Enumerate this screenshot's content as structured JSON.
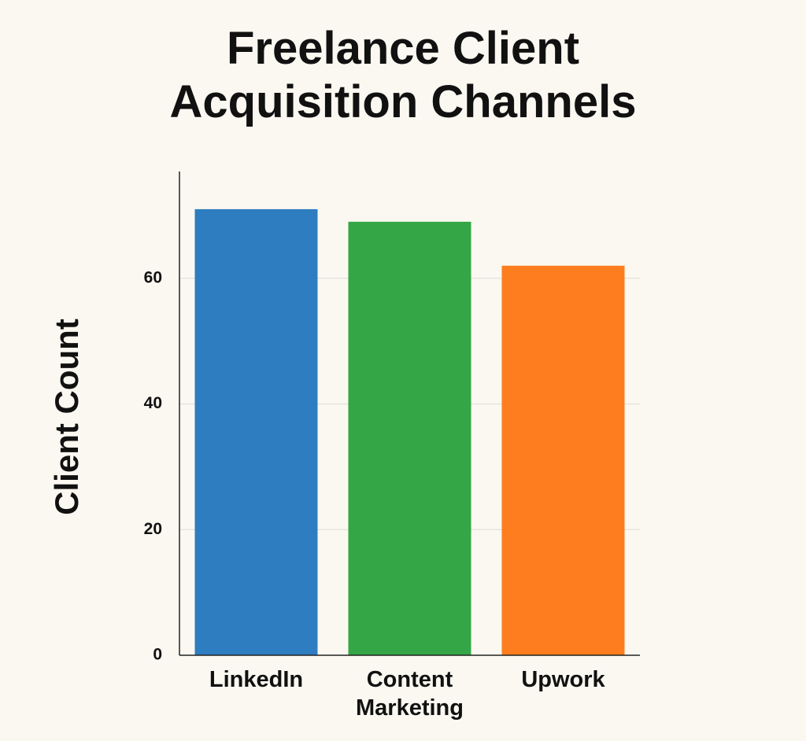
{
  "chart_data": {
    "type": "bar",
    "title": "Freelance Client Acquisition Channels",
    "y_label": "Client Count",
    "categories": [
      "LinkedIn",
      "Content Marketing",
      "Upwork"
    ],
    "values": [
      71,
      69,
      62
    ],
    "colors": [
      "#2e7dc0",
      "#35a645",
      "#fd7d1f"
    ],
    "ylim": [
      0,
      77
    ],
    "yticks": [
      0,
      20,
      40,
      60
    ],
    "grid": true
  }
}
